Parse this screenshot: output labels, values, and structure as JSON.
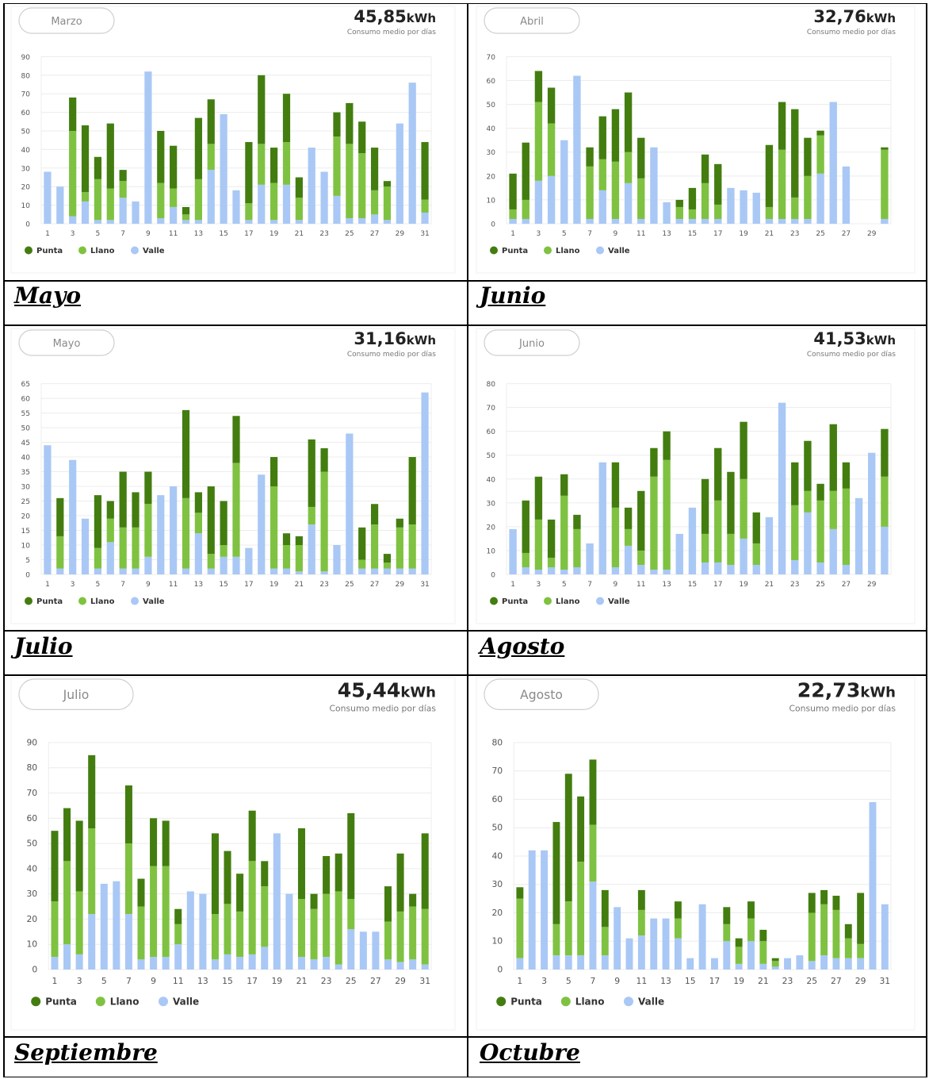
{
  "colors": {
    "punta": "#437d10",
    "llano": "#7fc241",
    "valle": "#a9c8f5",
    "grid": "#ececec",
    "axis_text": "#555555",
    "pill_border": "#cfcfcf"
  },
  "section_labels": [
    "Mayo",
    "Junio",
    "Julio",
    "Agosto",
    "Septiembre",
    "Octubre"
  ],
  "legend": [
    "Punta",
    "Llano",
    "Valle"
  ],
  "subtitle": "Consumo medio por días",
  "unit": "kWh",
  "chart_data": [
    {
      "type": "bar",
      "stacked": true,
      "month": "Marzo",
      "average_value": "45,85",
      "ylim": [
        0,
        90
      ],
      "yticks": [
        0,
        10,
        20,
        30,
        40,
        50,
        60,
        70,
        80,
        90
      ],
      "days": 31,
      "xticks": [
        1,
        3,
        5,
        7,
        9,
        11,
        13,
        15,
        17,
        19,
        21,
        23,
        25,
        27,
        29,
        31
      ],
      "series": [
        {
          "name": "Valle",
          "values": [
            28,
            20,
            4,
            12,
            2,
            2,
            14,
            12,
            82,
            3,
            9,
            2,
            2,
            29,
            59,
            18,
            2,
            21,
            2,
            21,
            2,
            41,
            28,
            15,
            3,
            3,
            5,
            2,
            54,
            76,
            6
          ]
        },
        {
          "name": "Llano",
          "values": [
            0,
            0,
            46,
            5,
            22,
            17,
            9,
            0,
            0,
            19,
            10,
            3,
            22,
            14,
            0,
            0,
            9,
            22,
            20,
            23,
            12,
            0,
            0,
            32,
            40,
            35,
            13,
            18,
            0,
            0,
            7
          ]
        },
        {
          "name": "Punta",
          "values": [
            0,
            0,
            18,
            36,
            12,
            35,
            6,
            0,
            0,
            28,
            23,
            4,
            33,
            24,
            0,
            0,
            33,
            37,
            19,
            26,
            11,
            0,
            0,
            13,
            22,
            17,
            23,
            3,
            0,
            0,
            31
          ]
        }
      ]
    },
    {
      "type": "bar",
      "stacked": true,
      "month": "Abril",
      "average_value": "32,76",
      "ylim": [
        0,
        70
      ],
      "yticks": [
        0,
        10,
        20,
        30,
        40,
        50,
        60,
        70
      ],
      "days": 30,
      "xticks": [
        1,
        3,
        5,
        7,
        9,
        11,
        13,
        15,
        17,
        19,
        21,
        23,
        25,
        27,
        29
      ],
      "series": [
        {
          "name": "Valle",
          "values": [
            2,
            2,
            18,
            20,
            35,
            62,
            2,
            14,
            2,
            17,
            2,
            32,
            9,
            2,
            2,
            2,
            2,
            15,
            14,
            13,
            2,
            2,
            2,
            2,
            21,
            51,
            24,
            0,
            0,
            2
          ]
        },
        {
          "name": "Llano",
          "values": [
            4,
            8,
            33,
            22,
            0,
            0,
            22,
            13,
            24,
            13,
            17,
            0,
            0,
            5,
            4,
            15,
            6,
            0,
            0,
            0,
            5,
            29,
            9,
            18,
            16,
            0,
            0,
            0,
            0,
            29
          ]
        },
        {
          "name": "Punta",
          "values": [
            15,
            24,
            13,
            15,
            0,
            0,
            8,
            18,
            22,
            25,
            17,
            0,
            0,
            3,
            9,
            12,
            17,
            0,
            0,
            0,
            26,
            20,
            37,
            16,
            2,
            0,
            0,
            0,
            0,
            1
          ]
        }
      ]
    },
    {
      "type": "bar",
      "stacked": true,
      "month": "Mayo",
      "average_value": "31,16",
      "ylim": [
        0,
        65
      ],
      "yticks": [
        0,
        5,
        10,
        15,
        20,
        25,
        30,
        35,
        40,
        45,
        50,
        55,
        60,
        65
      ],
      "days": 31,
      "xticks": [
        1,
        3,
        5,
        7,
        9,
        11,
        13,
        15,
        17,
        19,
        21,
        23,
        25,
        27,
        29,
        31
      ],
      "series": [
        {
          "name": "Valle",
          "values": [
            44,
            2,
            39,
            19,
            2,
            11,
            2,
            2,
            6,
            27,
            30,
            2,
            14,
            2,
            6,
            6,
            9,
            34,
            2,
            2,
            1,
            17,
            1,
            10,
            48,
            2,
            2,
            2,
            2,
            2,
            62
          ]
        },
        {
          "name": "Llano",
          "values": [
            0,
            11,
            0,
            0,
            7,
            8,
            14,
            14,
            18,
            0,
            0,
            24,
            7,
            5,
            4,
            32,
            0,
            0,
            28,
            8,
            9,
            6,
            34,
            0,
            0,
            3,
            15,
            2,
            14,
            15,
            0
          ]
        },
        {
          "name": "Punta",
          "values": [
            0,
            13,
            0,
            0,
            18,
            6,
            19,
            12,
            11,
            0,
            0,
            30,
            7,
            23,
            15,
            16,
            0,
            0,
            10,
            4,
            3,
            23,
            8,
            0,
            0,
            11,
            7,
            3,
            3,
            23,
            0
          ]
        }
      ]
    },
    {
      "type": "bar",
      "stacked": true,
      "month": "Junio",
      "average_value": "41,53",
      "ylim": [
        0,
        80
      ],
      "yticks": [
        0,
        10,
        20,
        30,
        40,
        50,
        60,
        70,
        80
      ],
      "days": 30,
      "xticks": [
        1,
        3,
        5,
        7,
        9,
        11,
        13,
        15,
        17,
        19,
        21,
        23,
        25,
        27,
        29
      ],
      "series": [
        {
          "name": "Valle",
          "values": [
            19,
            3,
            2,
            3,
            2,
            3,
            13,
            47,
            3,
            12,
            4,
            2,
            2,
            17,
            28,
            5,
            5,
            4,
            15,
            4,
            24,
            72,
            6,
            26,
            5,
            19,
            4,
            32,
            51,
            20
          ]
        },
        {
          "name": "Llano",
          "values": [
            0,
            6,
            21,
            4,
            31,
            16,
            0,
            0,
            25,
            7,
            6,
            39,
            46,
            0,
            0,
            12,
            26,
            13,
            25,
            9,
            0,
            0,
            23,
            9,
            26,
            16,
            32,
            0,
            0,
            21
          ]
        },
        {
          "name": "Punta",
          "values": [
            0,
            22,
            18,
            16,
            9,
            6,
            0,
            0,
            19,
            9,
            25,
            12,
            12,
            0,
            0,
            23,
            22,
            26,
            24,
            13,
            0,
            0,
            18,
            21,
            7,
            28,
            11,
            0,
            0,
            20
          ]
        }
      ]
    },
    {
      "type": "bar",
      "stacked": true,
      "month": "Julio",
      "average_value": "45,44",
      "ylim": [
        0,
        90
      ],
      "yticks": [
        0,
        10,
        20,
        30,
        40,
        50,
        60,
        70,
        80,
        90
      ],
      "days": 31,
      "xticks": [
        1,
        3,
        5,
        7,
        9,
        11,
        13,
        15,
        17,
        19,
        21,
        23,
        25,
        27,
        29,
        31
      ],
      "series": [
        {
          "name": "Valle",
          "values": [
            5,
            10,
            6,
            22,
            34,
            35,
            22,
            4,
            5,
            5,
            10,
            31,
            30,
            4,
            6,
            5,
            6,
            9,
            54,
            30,
            5,
            4,
            5,
            2,
            16,
            15,
            15,
            4,
            3,
            4,
            2
          ]
        },
        {
          "name": "Llano",
          "values": [
            22,
            33,
            25,
            34,
            0,
            0,
            28,
            21,
            36,
            36,
            8,
            0,
            0,
            18,
            20,
            18,
            37,
            24,
            0,
            0,
            23,
            20,
            25,
            29,
            12,
            0,
            0,
            15,
            20,
            21,
            22
          ]
        },
        {
          "name": "Punta",
          "values": [
            28,
            21,
            28,
            29,
            0,
            0,
            23,
            11,
            19,
            18,
            6,
            0,
            0,
            32,
            21,
            15,
            20,
            10,
            0,
            0,
            28,
            6,
            15,
            15,
            34,
            0,
            0,
            14,
            23,
            5,
            30
          ]
        }
      ]
    },
    {
      "type": "bar",
      "stacked": true,
      "month": "Agosto",
      "average_value": "22,73",
      "ylim": [
        0,
        80
      ],
      "yticks": [
        0,
        10,
        20,
        30,
        40,
        50,
        60,
        70,
        80
      ],
      "days": 31,
      "xticks": [
        1,
        3,
        5,
        7,
        9,
        11,
        13,
        15,
        17,
        19,
        21,
        23,
        25,
        27,
        29,
        31
      ],
      "series": [
        {
          "name": "Valle",
          "values": [
            4,
            42,
            42,
            5,
            5,
            5,
            31,
            5,
            22,
            11,
            12,
            18,
            18,
            11,
            4,
            23,
            4,
            10,
            2,
            10,
            2,
            1,
            4,
            5,
            3,
            5,
            4,
            4,
            4,
            59,
            23
          ]
        },
        {
          "name": "Llano",
          "values": [
            21,
            0,
            0,
            11,
            19,
            33,
            20,
            10,
            0,
            0,
            9,
            0,
            0,
            7,
            0,
            0,
            0,
            6,
            6,
            8,
            8,
            2,
            0,
            0,
            17,
            18,
            17,
            7,
            5,
            0,
            0
          ]
        },
        {
          "name": "Punta",
          "values": [
            4,
            0,
            0,
            36,
            45,
            23,
            23,
            13,
            0,
            0,
            7,
            0,
            0,
            6,
            0,
            0,
            0,
            6,
            3,
            6,
            4,
            1,
            0,
            0,
            7,
            5,
            5,
            5,
            18,
            0,
            0
          ]
        }
      ]
    }
  ]
}
